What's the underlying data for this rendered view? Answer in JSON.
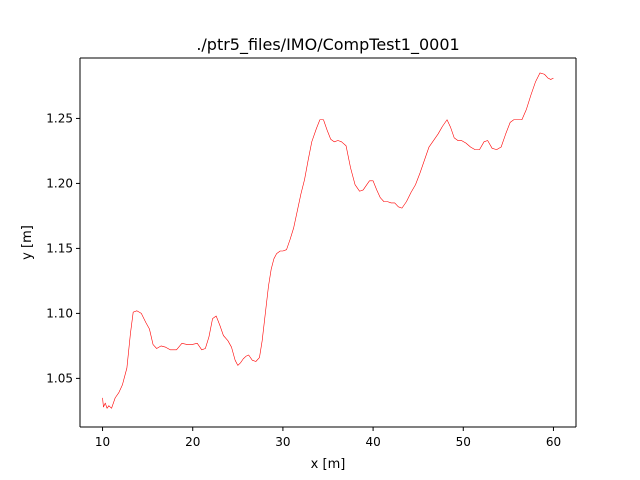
{
  "chart_data": {
    "type": "line",
    "title": "./ptr5_files/IMO/CompTest1_0001",
    "xlabel": "x [m]",
    "ylabel": "y [m]",
    "xlim": [
      7.5,
      62.5
    ],
    "ylim": [
      1.0126,
      1.2965
    ],
    "grid": false,
    "x_ticks": [
      10,
      20,
      30,
      40,
      50,
      60
    ],
    "x_tick_labels": [
      "10",
      "20",
      "30",
      "40",
      "50",
      "60"
    ],
    "y_ticks": [
      1.05,
      1.1,
      1.15,
      1.2,
      1.25
    ],
    "y_tick_labels": [
      "1.05",
      "1.10",
      "1.15",
      "1.20",
      "1.25"
    ],
    "series": [
      {
        "color": "#ff0000",
        "x": [
          10.0,
          10.1,
          10.3,
          10.5,
          10.7,
          11.0,
          11.4,
          11.8,
          12.2,
          12.7,
          13.1,
          13.4,
          13.8,
          14.3,
          14.8,
          15.2,
          15.6,
          16.0,
          16.5,
          17.0,
          17.5,
          18.2,
          18.8,
          19.4,
          19.9,
          20.5,
          21.0,
          21.4,
          21.8,
          22.2,
          22.6,
          23.0,
          23.4,
          23.9,
          24.3,
          24.7,
          25.0,
          25.3,
          25.6,
          25.9,
          26.2,
          26.6,
          27.0,
          27.4,
          27.7,
          28.1,
          28.4,
          28.7,
          29.0,
          29.3,
          29.7,
          30.0,
          30.4,
          30.8,
          31.2,
          31.6,
          32.0,
          32.4,
          32.8,
          33.2,
          33.7,
          34.1,
          34.5,
          34.9,
          35.3,
          35.7,
          36.1,
          36.5,
          37.0,
          37.5,
          38.0,
          38.5,
          38.9,
          39.3,
          39.6,
          40.0,
          40.4,
          40.8,
          41.2,
          41.6,
          42.0,
          42.4,
          42.8,
          43.2,
          43.7,
          44.2,
          44.7,
          45.2,
          45.7,
          46.2,
          46.7,
          47.2,
          47.7,
          48.2,
          48.6,
          49.0,
          49.4,
          49.8,
          50.3,
          50.8,
          51.3,
          51.8,
          52.3,
          52.7,
          53.2,
          53.7,
          54.2,
          54.7,
          55.2,
          55.6,
          56.0,
          56.5,
          57.0,
          57.5,
          58.0,
          58.5,
          59.0,
          59.4,
          59.7,
          60.0
        ],
        "y": [
          1.035,
          1.028,
          1.031,
          1.027,
          1.029,
          1.027,
          1.035,
          1.039,
          1.045,
          1.058,
          1.085,
          1.101,
          1.102,
          1.1,
          1.093,
          1.088,
          1.076,
          1.073,
          1.075,
          1.074,
          1.072,
          1.072,
          1.077,
          1.076,
          1.076,
          1.077,
          1.072,
          1.073,
          1.082,
          1.096,
          1.098,
          1.091,
          1.083,
          1.079,
          1.074,
          1.064,
          1.06,
          1.062,
          1.065,
          1.067,
          1.068,
          1.064,
          1.063,
          1.066,
          1.079,
          1.103,
          1.121,
          1.134,
          1.142,
          1.146,
          1.148,
          1.148,
          1.149,
          1.157,
          1.166,
          1.179,
          1.192,
          1.203,
          1.218,
          1.232,
          1.242,
          1.249,
          1.249,
          1.241,
          1.234,
          1.232,
          1.233,
          1.232,
          1.229,
          1.212,
          1.199,
          1.194,
          1.195,
          1.199,
          1.202,
          1.202,
          1.195,
          1.189,
          1.186,
          1.186,
          1.185,
          1.185,
          1.182,
          1.181,
          1.186,
          1.193,
          1.199,
          1.208,
          1.218,
          1.228,
          1.233,
          1.238,
          1.244,
          1.249,
          1.243,
          1.235,
          1.233,
          1.233,
          1.231,
          1.228,
          1.226,
          1.226,
          1.232,
          1.233,
          1.227,
          1.226,
          1.228,
          1.238,
          1.247,
          1.249,
          1.249,
          1.249,
          1.257,
          1.268,
          1.278,
          1.285,
          1.284,
          1.281,
          1.28,
          1.281
        ]
      }
    ]
  }
}
